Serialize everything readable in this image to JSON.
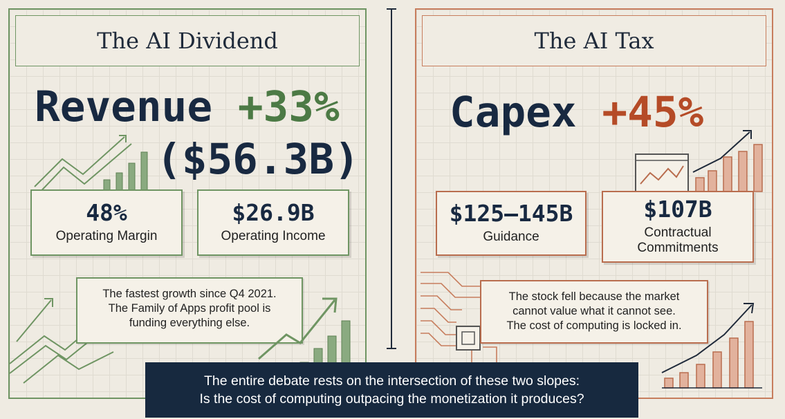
{
  "left_panel": {
    "title": "The AI Dividend",
    "headline_label": "Revenue",
    "headline_change": "+33%",
    "headline_amount": "($56.3B)",
    "stats": [
      {
        "value": "48%",
        "label": "Operating Margin"
      },
      {
        "value": "$26.9B",
        "label": "Operating Income"
      }
    ],
    "note": [
      "The fastest growth since Q4 2021.",
      "The Family of Apps profit pool is",
      "funding everything else."
    ]
  },
  "right_panel": {
    "title": "The AI Tax",
    "headline_label": "Capex",
    "headline_change": "+45%",
    "stats": [
      {
        "value": "$125–145B",
        "label": "Guidance"
      },
      {
        "value": "$107B",
        "label": "Contractual",
        "label2": "Commitments"
      }
    ],
    "note": [
      "The stock fell because the market",
      "cannot value what it cannot see.",
      "The cost of computing is locked in."
    ]
  },
  "footer": {
    "line1": "The entire debate rests on the intersection of these two slopes:",
    "line2": "Is the cost of computing outpacing the monetization it produces?"
  },
  "colors": {
    "navy": "#182941",
    "green": "#4c7a45",
    "rust": "#b54b27",
    "background": "#efebe2"
  },
  "icons": [
    "arrow-up-chart-icon",
    "bar-chart-icon",
    "line-chart-window-icon",
    "circuit-board-icon",
    "microchip-icon"
  ]
}
